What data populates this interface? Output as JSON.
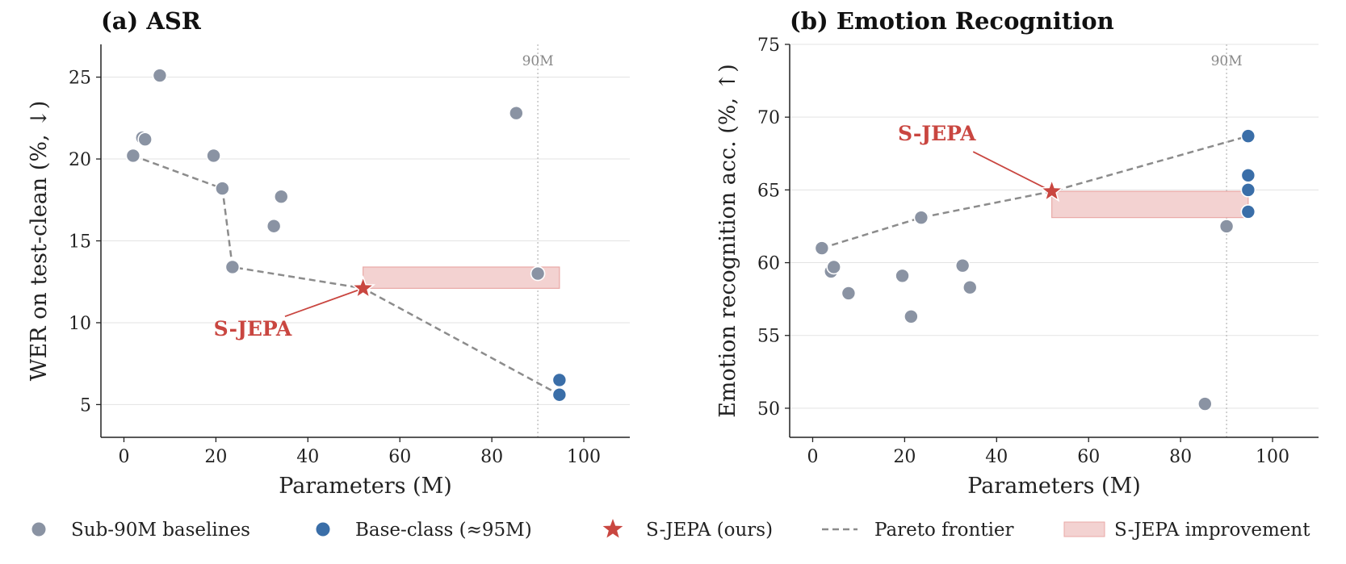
{
  "colors": {
    "baseline": "#8a93a3",
    "baseclass": "#3a6ea8",
    "sjepa": "#c94640",
    "pareto": "#8c8c8c",
    "improvement_fill": "#f3d2d1",
    "improvement_edge": "#e9a8a6",
    "grid": "#e3e3e3",
    "vline": "#b5b5b5"
  },
  "legend": {
    "items": [
      {
        "label": "Sub-90M baselines",
        "kind": "dot-baseline"
      },
      {
        "label": "Base-class (≈95M)",
        "kind": "dot-baseclass"
      },
      {
        "label": "S-JEPA (ours)",
        "kind": "star"
      },
      {
        "label": "Pareto frontier",
        "kind": "dash"
      },
      {
        "label": "S-JEPA improvement",
        "kind": "rect"
      }
    ]
  },
  "chart_data": [
    {
      "type": "scatter",
      "title": "(a) ASR",
      "xlabel": "Parameters (M)",
      "ylabel": "WER on test-clean (%, ↓)",
      "xlim": [
        -5,
        110
      ],
      "ylim": [
        3,
        27
      ],
      "xticks": [
        0,
        20,
        40,
        60,
        80,
        100
      ],
      "yticks": [
        5,
        10,
        15,
        20,
        25
      ],
      "grid": "horizontal",
      "vline": {
        "x": 90,
        "label": "90M"
      },
      "series": [
        {
          "name": "Sub-90M baselines",
          "points": [
            [
              2,
              20.2
            ],
            [
              4,
              21.3
            ],
            [
              4.6,
              21.2
            ],
            [
              7.8,
              25.1
            ],
            [
              19.5,
              20.2
            ],
            [
              21.4,
              18.2
            ],
            [
              23.6,
              13.4
            ],
            [
              32.6,
              15.9
            ],
            [
              34.2,
              17.7
            ],
            [
              85.3,
              22.8
            ],
            [
              90,
              13.0
            ]
          ]
        },
        {
          "name": "Base-class (≈95M)",
          "points": [
            [
              94.7,
              6.5
            ],
            [
              94.7,
              5.6
            ]
          ]
        },
        {
          "name": "S-JEPA (ours)",
          "points": [
            [
              52,
              12.1
            ]
          ]
        }
      ],
      "pareto": [
        [
          2,
          20.2
        ],
        [
          21.4,
          18.2
        ],
        [
          23.6,
          13.4
        ],
        [
          52,
          12.1
        ],
        [
          94.7,
          5.6
        ]
      ],
      "improvement": {
        "x": [
          52,
          94.7
        ],
        "y": [
          12.1,
          13.4
        ]
      },
      "annotation": {
        "text": "S-JEPA",
        "x": 28,
        "y": 9.2
      }
    },
    {
      "type": "scatter",
      "title": "(b) Emotion Recognition",
      "xlabel": "Parameters (M)",
      "ylabel": "Emotion recognition acc. (%, ↑)",
      "xlim": [
        -5,
        110
      ],
      "ylim": [
        48,
        75
      ],
      "xticks": [
        0,
        20,
        40,
        60,
        80,
        100
      ],
      "yticks": [
        50,
        55,
        60,
        65,
        70,
        75
      ],
      "grid": "horizontal",
      "vline": {
        "x": 90,
        "label": "90M"
      },
      "series": [
        {
          "name": "Sub-90M baselines",
          "points": [
            [
              2,
              61.0
            ],
            [
              4,
              59.4
            ],
            [
              4.6,
              59.7
            ],
            [
              7.8,
              57.9
            ],
            [
              19.5,
              59.1
            ],
            [
              21.4,
              56.3
            ],
            [
              23.6,
              63.1
            ],
            [
              32.6,
              59.8
            ],
            [
              34.2,
              58.3
            ],
            [
              85.3,
              50.3
            ],
            [
              90,
              62.5
            ]
          ]
        },
        {
          "name": "Base-class (≈95M)",
          "points": [
            [
              94.7,
              68.7
            ],
            [
              94.7,
              66.0
            ],
            [
              94.7,
              65.0
            ],
            [
              94.7,
              63.5
            ]
          ]
        },
        {
          "name": "S-JEPA (ours)",
          "points": [
            [
              52,
              64.9
            ]
          ]
        }
      ],
      "pareto": [
        [
          2,
          61.0
        ],
        [
          23.6,
          63.1
        ],
        [
          52,
          64.9
        ],
        [
          94.7,
          68.7
        ]
      ],
      "improvement": {
        "x": [
          52,
          94.7
        ],
        "y": [
          63.1,
          64.9
        ]
      },
      "annotation": {
        "text": "S-JEPA",
        "x": 27,
        "y": 68.4
      }
    }
  ]
}
